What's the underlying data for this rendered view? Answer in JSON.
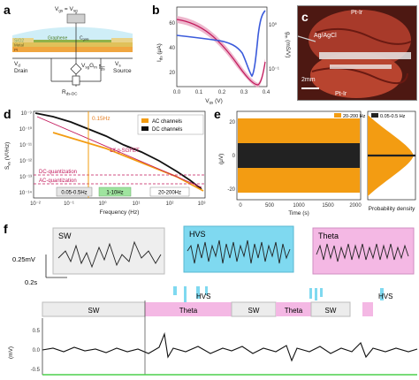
{
  "panels": {
    "a": {
      "label": "a",
      "vgs": "V",
      "vgs_sub": "gs",
      "vgs_eq": " = V",
      "vgs_sub2": "sg",
      "sio2": "SiO2",
      "graphene": "Graphene",
      "cgate": "C",
      "cgate_sub": "gate",
      "metal": "Metal",
      "pi": "PI",
      "vd": "V",
      "vd_sub": "d",
      "drain": "Drain",
      "vs": "V",
      "vs_sub": "s",
      "source": "Source",
      "ids": "I",
      "ids_sub": "ds",
      "vsggm": "V",
      "vsggm_sub": "sg",
      "vsggm_g": "G",
      "vsggm_gsub": "m",
      "rds": "R",
      "rds_sub": "ds-DC"
    },
    "b": {
      "label": "b",
      "ylabel_left": "I",
      "ylabel_left_sub": "ds",
      "ylabel_left_unit": " (μA)",
      "ylabel_right": "g",
      "ylabel_right_sub": "m",
      "ylabel_right_unit": " (mS/V)",
      "xlabel": "V",
      "xlabel_sub": "gs",
      "xlabel_unit": " (V)",
      "yticks_left": [
        "60",
        "40",
        "20"
      ],
      "yticks_right": [
        "10⁰",
        "10⁻¹"
      ],
      "xticks": [
        "0.0",
        "0.1",
        "0.2",
        "0.3",
        "0.4"
      ]
    },
    "c": {
      "label": "c",
      "ag": "Ag/AgCl",
      "ptir_top": "Pt-Ir",
      "ptir_bot": "Pt-Ir",
      "scale": "2mm"
    },
    "d": {
      "label": "d",
      "ylabel": "S",
      "ylabel_sub": "vs",
      "ylabel_unit": " (V²/Hz)",
      "xlabel": "Frequency (Hz)",
      "marker": "0.15Hz",
      "fit_label": "1/f g-SGFET",
      "dc_q": "DC-quantization",
      "ac_q": "AC-quantization",
      "legend": [
        "AC channels",
        "DC channels"
      ],
      "bands": [
        "0.05-0.5Hz",
        "1-10Hz",
        "20-200Hz"
      ],
      "yticks": [
        "10⁻⁹",
        "10⁻¹⁰",
        "10⁻¹¹",
        "10⁻¹²",
        "10⁻¹³",
        "10⁻¹⁴"
      ],
      "xticks": [
        "10⁻²",
        "10⁻¹",
        "10⁰",
        "10¹",
        "10²",
        "10³"
      ]
    },
    "e": {
      "label": "e",
      "legend": [
        "20-200 Hz",
        "0.05-0.5 Hz"
      ],
      "ylabel": "(μV)",
      "xlabel": "Time (s)",
      "xlabel_right": "Probability density",
      "yticks": [
        "20",
        "0",
        "-20"
      ],
      "xticks": [
        "0",
        "500",
        "1000",
        "1500",
        "2000"
      ]
    },
    "f": {
      "label": "f",
      "inset_labels": [
        "SW",
        "HVS",
        "Theta"
      ],
      "scale_v": "0.25mV",
      "scale_t": "0.2s",
      "ylabel": "(mV)",
      "yticks": [
        "0.5",
        "0.0",
        "-0.5"
      ],
      "hvs_labels": [
        "HVS",
        "HVS"
      ],
      "states": [
        "SW",
        "Theta",
        "SW",
        "Theta",
        "SW"
      ]
    }
  },
  "colors": {
    "orange": "#f39c12",
    "black": "#111111",
    "red": "#c2185b",
    "blue": "#3b5bdb",
    "pink": "#f4b8e4",
    "cyan": "#7fd9f0",
    "grey_box": "#e9e9e9",
    "green": "#8ae08a",
    "graphene": "#d4e6a5"
  }
}
